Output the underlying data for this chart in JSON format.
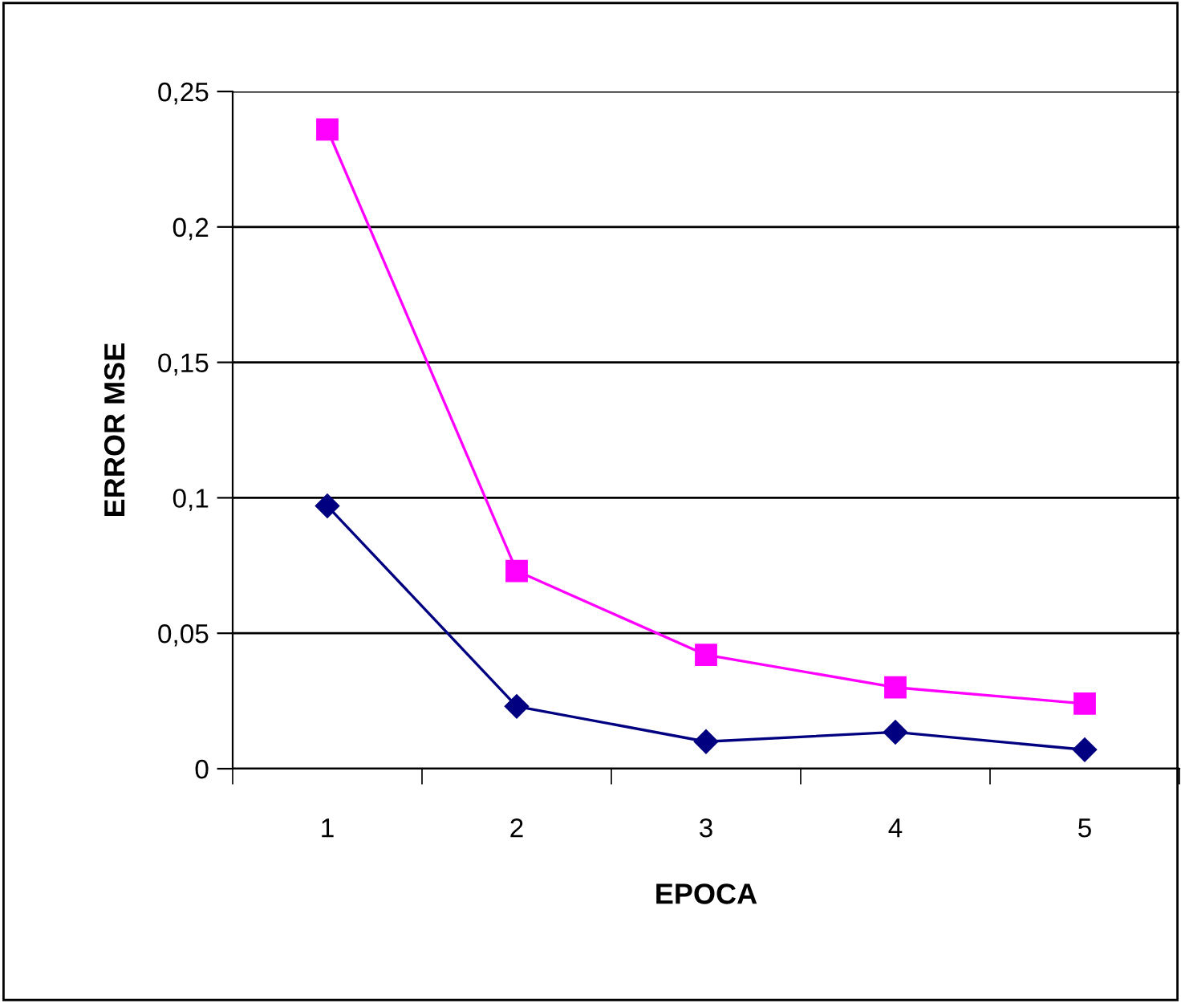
{
  "chart_data": {
    "type": "line",
    "xlabel": "EPOCA",
    "ylabel": "ERROR MSE",
    "categories": [
      "1",
      "2",
      "3",
      "4",
      "5"
    ],
    "series": [
      {
        "color": "#ff00ff",
        "marker": "square",
        "values": [
          0.236,
          0.073,
          0.042,
          0.03,
          0.024
        ]
      },
      {
        "color": "#000080",
        "marker": "diamond",
        "values": [
          0.097,
          0.023,
          0.01,
          0.0135,
          0.007
        ]
      }
    ],
    "ylim": [
      0,
      0.25
    ],
    "yticks": [
      {
        "value": 0,
        "label": "0"
      },
      {
        "value": 0.05,
        "label": "0,05"
      },
      {
        "value": 0.1,
        "label": "0,1"
      },
      {
        "value": 0.15,
        "label": "0,15"
      },
      {
        "value": 0.2,
        "label": "0,2"
      },
      {
        "value": 0.25,
        "label": "0,25"
      }
    ],
    "grid": "y",
    "legend": false,
    "line_style": "solid"
  }
}
